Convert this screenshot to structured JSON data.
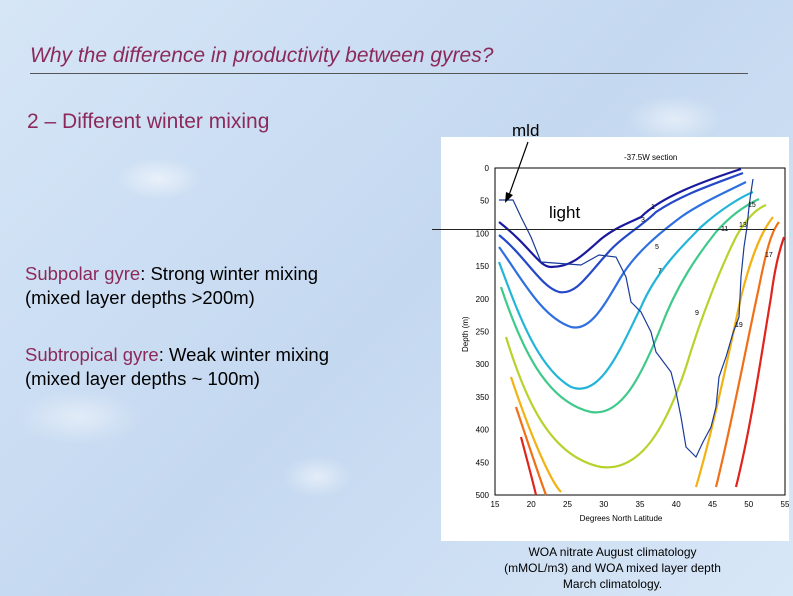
{
  "slide": {
    "title": "Why the difference in productivity between gyres?",
    "subtitle": "2 – Different winter mixing",
    "subpolar": {
      "term": "Subpolar gyre",
      "rest": ": Strong winter mixing",
      "line2": "(mixed layer depths >200m)"
    },
    "subtropical": {
      "term": "Subtropical gyre",
      "rest": ": Weak winter mixing",
      "line2": "(mixed layer depths ~ 100m)"
    },
    "callout_mld": "mld",
    "callout_light": "light",
    "caption": "WOA nitrate August climatology (mMOL/m3) and WOA mixed layer depth March climatology."
  },
  "figure": {
    "section_title": "-37.5W section",
    "ylabel": "Depth (m)",
    "xlabel": "Degrees North Latitude",
    "xticks": [
      "15",
      "20",
      "25",
      "30",
      "35",
      "40",
      "45",
      "50",
      "55"
    ],
    "yticks": [
      "0",
      "50",
      "100",
      "150",
      "200",
      "250",
      "300",
      "350",
      "400",
      "450",
      "500"
    ],
    "contour_labels": [
      "1",
      "3",
      "5",
      "7",
      "9",
      "11",
      "13",
      "15",
      "17",
      "19"
    ]
  }
}
